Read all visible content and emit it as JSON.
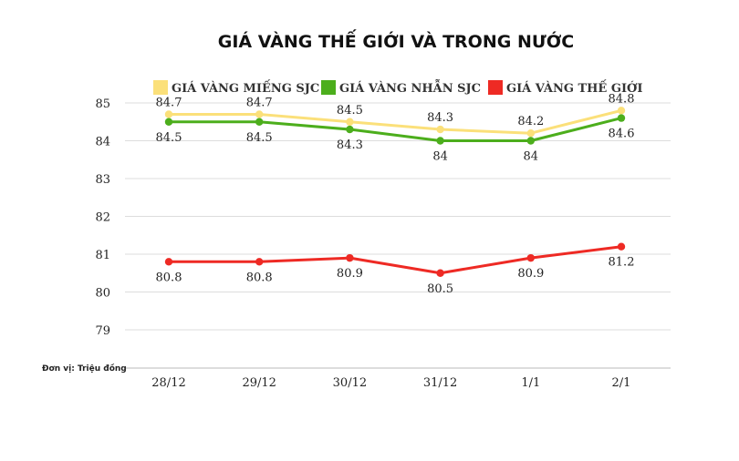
{
  "chart_data": {
    "type": "line",
    "title": "GIÁ VÀNG THẾ GIỚI VÀ TRONG NƯỚC",
    "unit_note": "Đơn vị: Triệu đồng",
    "categories": [
      "28/12",
      "29/12",
      "30/12",
      "31/12",
      "1/1",
      "2/1"
    ],
    "ylim": [
      78.5,
      85.2
    ],
    "yticks": [
      79,
      80,
      81,
      82,
      83,
      84,
      85
    ],
    "grid": true,
    "legend_position": "top",
    "series": [
      {
        "name": "GIÁ VÀNG MIẾNG SJC",
        "color": "#fbe07a",
        "values": [
          84.7,
          84.7,
          84.5,
          84.3,
          84.2,
          84.8
        ],
        "label_position": "above"
      },
      {
        "name": "GIÁ VÀNG NHẪN SJC",
        "color": "#4cae1c",
        "values": [
          84.5,
          84.5,
          84.3,
          84.0,
          84.0,
          84.6
        ],
        "label_position": "below"
      },
      {
        "name": "GIÁ VÀNG THẾ GIỚI",
        "color": "#ee2a24",
        "values": [
          80.8,
          80.8,
          80.9,
          80.5,
          80.9,
          81.2
        ],
        "label_position": "below"
      }
    ]
  }
}
